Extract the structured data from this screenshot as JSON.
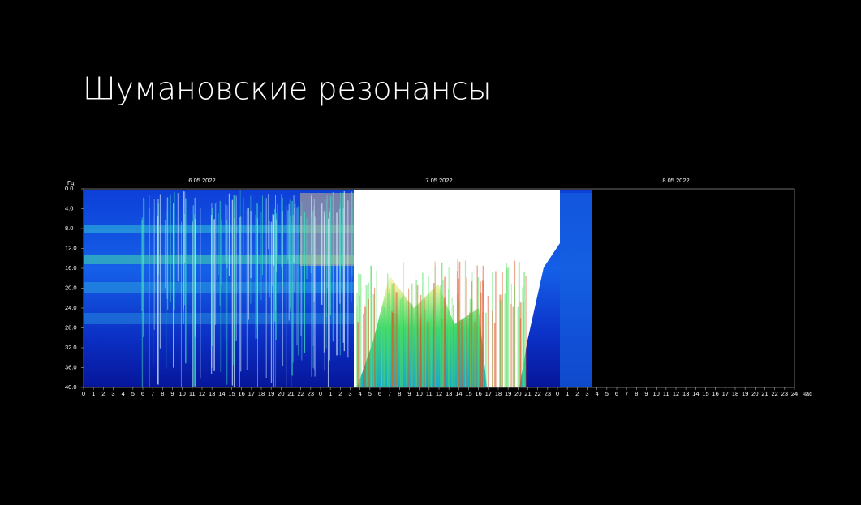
{
  "title": "Шумановские резонансы",
  "chart_data": {
    "type": "spectrogram",
    "ylabel": "Гц",
    "xlabel": "час",
    "ylim": [
      0,
      40
    ],
    "yticks": [
      {
        "value": 0,
        "label": "0.0"
      },
      {
        "value": 4,
        "label": "4.0"
      },
      {
        "value": 8,
        "label": "8.0"
      },
      {
        "value": 12,
        "label": "12.0"
      },
      {
        "value": 16,
        "label": "16.0"
      },
      {
        "value": 20,
        "label": "20.0"
      },
      {
        "value": 24,
        "label": "24.0"
      },
      {
        "value": 28,
        "label": "28.0"
      },
      {
        "value": 32,
        "label": "32.0"
      },
      {
        "value": 36,
        "label": "36.0"
      },
      {
        "value": 40,
        "label": "40.0"
      }
    ],
    "xlim": [
      0,
      72
    ],
    "dates": [
      "6.05.2022",
      "7.05.2022",
      "8.05.2022"
    ],
    "xticks": [
      0,
      1,
      2,
      3,
      4,
      5,
      6,
      7,
      8,
      9,
      10,
      11,
      12,
      13,
      14,
      15,
      16,
      17,
      18,
      19,
      20,
      21,
      22,
      23,
      {
        "value": 24,
        "label": "0"
      },
      {
        "value": 25,
        "label": "1"
      },
      {
        "value": 26,
        "label": "2"
      },
      {
        "value": 27,
        "label": "3"
      },
      {
        "value": 28,
        "label": "4"
      },
      {
        "value": 29,
        "label": "5"
      },
      {
        "value": 30,
        "label": "6"
      },
      {
        "value": 31,
        "label": "7"
      },
      {
        "value": 32,
        "label": "8"
      },
      {
        "value": 33,
        "label": "9"
      },
      {
        "value": 34,
        "label": "10"
      },
      {
        "value": 35,
        "label": "11"
      },
      {
        "value": 36,
        "label": "12"
      },
      {
        "value": 37,
        "label": "13"
      },
      {
        "value": 38,
        "label": "14"
      },
      {
        "value": 39,
        "label": "15"
      },
      {
        "value": 40,
        "label": "16"
      },
      {
        "value": 41,
        "label": "17"
      },
      {
        "value": 42,
        "label": "18"
      },
      {
        "value": 43,
        "label": "19"
      },
      {
        "value": 44,
        "label": "20"
      },
      {
        "value": 45,
        "label": "21"
      },
      {
        "value": 46,
        "label": "22"
      },
      {
        "value": 47,
        "label": "23"
      },
      {
        "value": 48,
        "label": "0"
      },
      {
        "value": 49,
        "label": "1"
      },
      {
        "value": 50,
        "label": "2"
      },
      {
        "value": 51,
        "label": "3"
      },
      {
        "value": 52,
        "label": "4"
      },
      {
        "value": 53,
        "label": "5"
      },
      {
        "value": 54,
        "label": "6"
      },
      {
        "value": 55,
        "label": "7"
      },
      {
        "value": 56,
        "label": "8"
      },
      {
        "value": 57,
        "label": "9"
      },
      {
        "value": 58,
        "label": "10"
      },
      {
        "value": 59,
        "label": "11"
      },
      {
        "value": 60,
        "label": "12"
      },
      {
        "value": 61,
        "label": "13"
      },
      {
        "value": 62,
        "label": "14"
      },
      {
        "value": 63,
        "label": "15"
      },
      {
        "value": 64,
        "label": "16"
      },
      {
        "value": 65,
        "label": "17"
      },
      {
        "value": 66,
        "label": "18"
      },
      {
        "value": 67,
        "label": "19"
      },
      {
        "value": 68,
        "label": "20"
      },
      {
        "value": 69,
        "label": "21"
      },
      {
        "value": 70,
        "label": "22"
      },
      {
        "value": 71,
        "label": "23"
      },
      {
        "value": 72,
        "label": "24"
      }
    ]
  }
}
